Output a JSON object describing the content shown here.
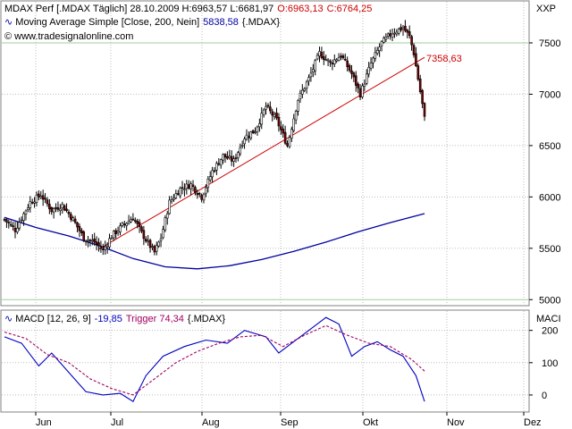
{
  "header": {
    "line1_prefix": "MDAX Perf [.MDAX  Täglich]  28.10.2009  H:6963,57  L:6681,97",
    "open_label": "O:6963,13",
    "close_label": "C:6764,25",
    "line2_prefix": "Moving Average Simple [Close, 200, Nein]",
    "line2_value": "5838,58",
    "line2_suffix": "{.MDAX}",
    "line3": "© www.tradesignalonline.com",
    "axis_unit": "XXP"
  },
  "macd_header": {
    "prefix": "MACD [12, 26, 9]",
    "macd_value": "-19,85",
    "trigger_label": "Trigger 74,34",
    "suffix": "{.MDAX}",
    "axis_unit": "MACI"
  },
  "colors": {
    "up": "#ffffff",
    "down": "#7a0000",
    "wick": "#000000",
    "sma": "#0000a0",
    "trend": "#cc0000",
    "macd": "#0000c0",
    "trigger": "#a00060",
    "grid": "#bdbdbd",
    "hgrid": "#9ecf9e"
  },
  "chart_data": [
    {
      "type": "candlestick",
      "title": "MDAX Perf [.MDAX Täglich] 28.10.2009",
      "x_months": [
        "Jun",
        "Jul",
        "Aug",
        "Sep",
        "Okt",
        "Nov",
        "Dez"
      ],
      "yticks": [
        5000,
        5500,
        6000,
        6500,
        7000,
        7500
      ],
      "ylim": [
        4950,
        7900
      ],
      "close_points": [
        [
          0,
          5780
        ],
        [
          5,
          5680
        ],
        [
          12,
          5950
        ],
        [
          17,
          6020
        ],
        [
          22,
          5870
        ],
        [
          27,
          5920
        ],
        [
          32,
          5780
        ],
        [
          37,
          5600
        ],
        [
          42,
          5560
        ],
        [
          46,
          5480
        ],
        [
          50,
          5620
        ],
        [
          55,
          5720
        ],
        [
          60,
          5800
        ],
        [
          64,
          5650
        ],
        [
          67,
          5550
        ],
        [
          70,
          5460
        ],
        [
          73,
          5600
        ],
        [
          77,
          5950
        ],
        [
          82,
          6080
        ],
        [
          87,
          6120
        ],
        [
          92,
          6000
        ],
        [
          97,
          6250
        ],
        [
          102,
          6400
        ],
        [
          107,
          6350
        ],
        [
          112,
          6580
        ],
        [
          117,
          6650
        ],
        [
          122,
          6880
        ],
        [
          127,
          6750
        ],
        [
          132,
          6500
        ],
        [
          137,
          6950
        ],
        [
          142,
          7150
        ],
        [
          147,
          7400
        ],
        [
          152,
          7300
        ],
        [
          157,
          7380
        ],
        [
          162,
          7200
        ],
        [
          166,
          7000
        ],
        [
          171,
          7300
        ],
        [
          176,
          7500
        ],
        [
          181,
          7600
        ],
        [
          186,
          7650
        ],
        [
          189,
          7560
        ],
        [
          191,
          7400
        ],
        [
          193,
          7150
        ],
        [
          195,
          6900
        ],
        [
          196,
          6764
        ]
      ],
      "sma": {
        "name": "Moving Average Simple [Close, 200, Nein]",
        "last_value": "5838,58",
        "points": [
          [
            0,
            5800
          ],
          [
            15,
            5700
          ],
          [
            30,
            5620
          ],
          [
            45,
            5520
          ],
          [
            60,
            5400
          ],
          [
            75,
            5320
          ],
          [
            90,
            5300
          ],
          [
            105,
            5330
          ],
          [
            120,
            5390
          ],
          [
            135,
            5470
          ],
          [
            150,
            5560
          ],
          [
            165,
            5660
          ],
          [
            180,
            5750
          ],
          [
            196,
            5838
          ]
        ]
      },
      "trendline": {
        "label": "7358,63",
        "points": [
          [
            44,
            5490
          ],
          [
            196,
            7358.63
          ]
        ]
      }
    },
    {
      "type": "line",
      "title": "MACD [12, 26, 9]",
      "yticks": [
        0,
        100,
        200
      ],
      "ylim": [
        -50,
        260
      ],
      "series": [
        {
          "name": "MACD",
          "last_value": "-19,85",
          "points": [
            [
              0,
              180
            ],
            [
              8,
              160
            ],
            [
              16,
              90
            ],
            [
              22,
              130
            ],
            [
              30,
              70
            ],
            [
              38,
              10
            ],
            [
              46,
              0
            ],
            [
              54,
              5
            ],
            [
              60,
              -20
            ],
            [
              66,
              60
            ],
            [
              74,
              120
            ],
            [
              84,
              150
            ],
            [
              94,
              170
            ],
            [
              104,
              160
            ],
            [
              112,
              200
            ],
            [
              122,
              180
            ],
            [
              128,
              130
            ],
            [
              134,
              160
            ],
            [
              144,
              210
            ],
            [
              150,
              240
            ],
            [
              156,
              220
            ],
            [
              162,
              120
            ],
            [
              168,
              150
            ],
            [
              174,
              165
            ],
            [
              180,
              140
            ],
            [
              186,
              120
            ],
            [
              192,
              60
            ],
            [
              196,
              -20
            ]
          ]
        },
        {
          "name": "Trigger",
          "last_value": "74,34",
          "points": [
            [
              0,
              195
            ],
            [
              10,
              175
            ],
            [
              20,
              125
            ],
            [
              30,
              100
            ],
            [
              40,
              50
            ],
            [
              50,
              20
            ],
            [
              60,
              0
            ],
            [
              70,
              50
            ],
            [
              80,
              100
            ],
            [
              90,
              135
            ],
            [
              100,
              160
            ],
            [
              110,
              180
            ],
            [
              120,
              185
            ],
            [
              130,
              150
            ],
            [
              140,
              185
            ],
            [
              150,
              215
            ],
            [
              160,
              185
            ],
            [
              170,
              160
            ],
            [
              180,
              150
            ],
            [
              190,
              110
            ],
            [
              196,
              74
            ]
          ]
        }
      ]
    }
  ]
}
